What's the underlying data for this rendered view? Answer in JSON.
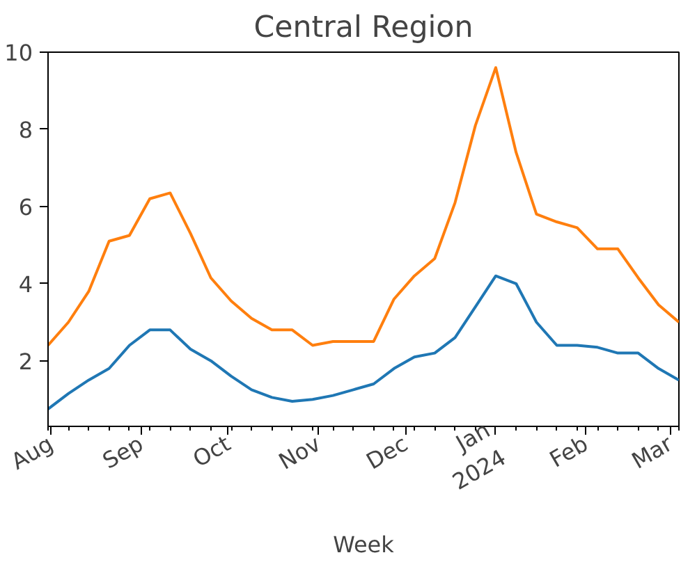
{
  "chart_data": {
    "type": "line",
    "title": "Central Region",
    "xlabel": "Week",
    "x": [
      "2023-07-31",
      "2023-08-07",
      "2023-08-14",
      "2023-08-21",
      "2023-08-28",
      "2023-09-04",
      "2023-09-11",
      "2023-09-18",
      "2023-09-25",
      "2023-10-02",
      "2023-10-09",
      "2023-10-16",
      "2023-10-23",
      "2023-10-30",
      "2023-11-06",
      "2023-11-13",
      "2023-11-20",
      "2023-11-27",
      "2023-12-04",
      "2023-12-11",
      "2023-12-18",
      "2023-12-25",
      "2024-01-01",
      "2024-01-08",
      "2024-01-15",
      "2024-01-22",
      "2024-01-29",
      "2024-02-05",
      "2024-02-12",
      "2024-02-19",
      "2024-02-26",
      "2024-03-04"
    ],
    "series": [
      {
        "color": "#1f77b4",
        "values": [
          0.75,
          1.15,
          1.5,
          1.8,
          2.4,
          2.8,
          2.8,
          2.3,
          2.0,
          1.6,
          1.25,
          1.05,
          0.95,
          1.0,
          1.1,
          1.25,
          1.4,
          1.8,
          2.1,
          2.2,
          2.6,
          3.4,
          4.2,
          4.0,
          3.0,
          2.4,
          2.4,
          2.35,
          2.2,
          2.2,
          1.8,
          1.5
        ]
      },
      {
        "color": "#ff7f0e",
        "values": [
          2.4,
          3.0,
          3.8,
          5.1,
          5.25,
          6.2,
          6.35,
          5.3,
          4.15,
          3.55,
          3.1,
          2.8,
          2.8,
          2.4,
          2.5,
          2.5,
          2.5,
          3.6,
          4.2,
          4.65,
          6.1,
          8.1,
          9.6,
          7.4,
          5.8,
          5.6,
          5.45,
          4.9,
          4.9,
          4.15,
          3.45,
          3.0
        ]
      }
    ],
    "xlim": [
      "2023-07-31",
      "2024-03-04"
    ],
    "xticks": [
      {
        "value": "2023-08-01",
        "label": "Aug"
      },
      {
        "value": "2023-09-01",
        "label": "Sep"
      },
      {
        "value": "2023-10-01",
        "label": "Oct"
      },
      {
        "value": "2023-11-01",
        "label": "Nov"
      },
      {
        "value": "2023-12-01",
        "label": "Dec"
      },
      {
        "value": "2024-01-01",
        "label": "Jan\n2024"
      },
      {
        "value": "2024-02-01",
        "label": "Feb"
      },
      {
        "value": "2024-03-01",
        "label": "Mar"
      }
    ],
    "ylim": [
      0.3,
      10
    ],
    "yticks": [
      2,
      4,
      6,
      8,
      10
    ],
    "grid": false,
    "marker": "none",
    "line_style": "solid"
  }
}
